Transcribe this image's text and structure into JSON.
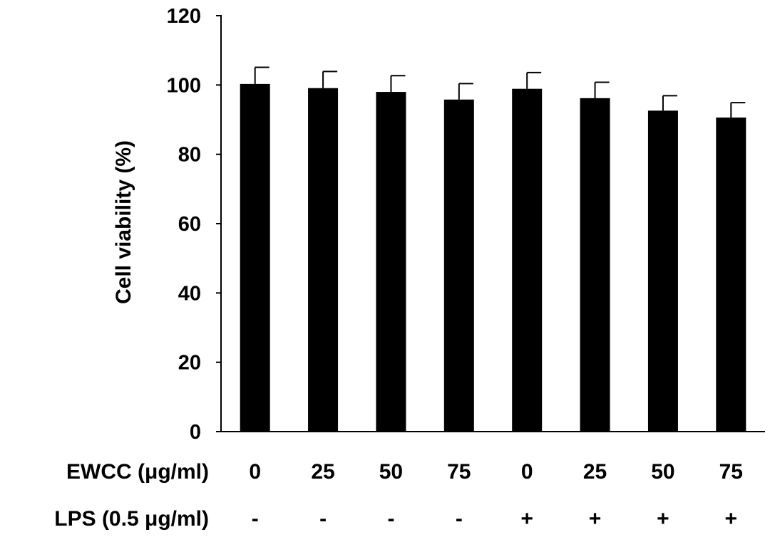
{
  "chart_data": {
    "type": "bar",
    "ylabel": "Cell viability (%)",
    "ylim": [
      0,
      120
    ],
    "yticks": [
      "0",
      "20",
      "40",
      "60",
      "80",
      "100",
      "120"
    ],
    "grid": false,
    "legend": "none",
    "bar_color": "#000000",
    "rows": [
      {
        "label": "EWCC (μg/ml)",
        "values": [
          "0",
          "25",
          "50",
          "75",
          "0",
          "25",
          "50",
          "75"
        ]
      },
      {
        "label": "LPS (0.5 μg/ml)",
        "values": [
          "-",
          "-",
          "-",
          "-",
          "+",
          "+",
          "+",
          "+"
        ]
      }
    ],
    "series": [
      {
        "values": [
          100.3,
          99.1,
          98.0,
          95.8,
          98.9,
          96.2,
          92.6,
          90.6
        ],
        "errors": [
          4.8,
          4.8,
          4.7,
          4.6,
          4.7,
          4.6,
          4.3,
          4.3
        ]
      }
    ]
  }
}
